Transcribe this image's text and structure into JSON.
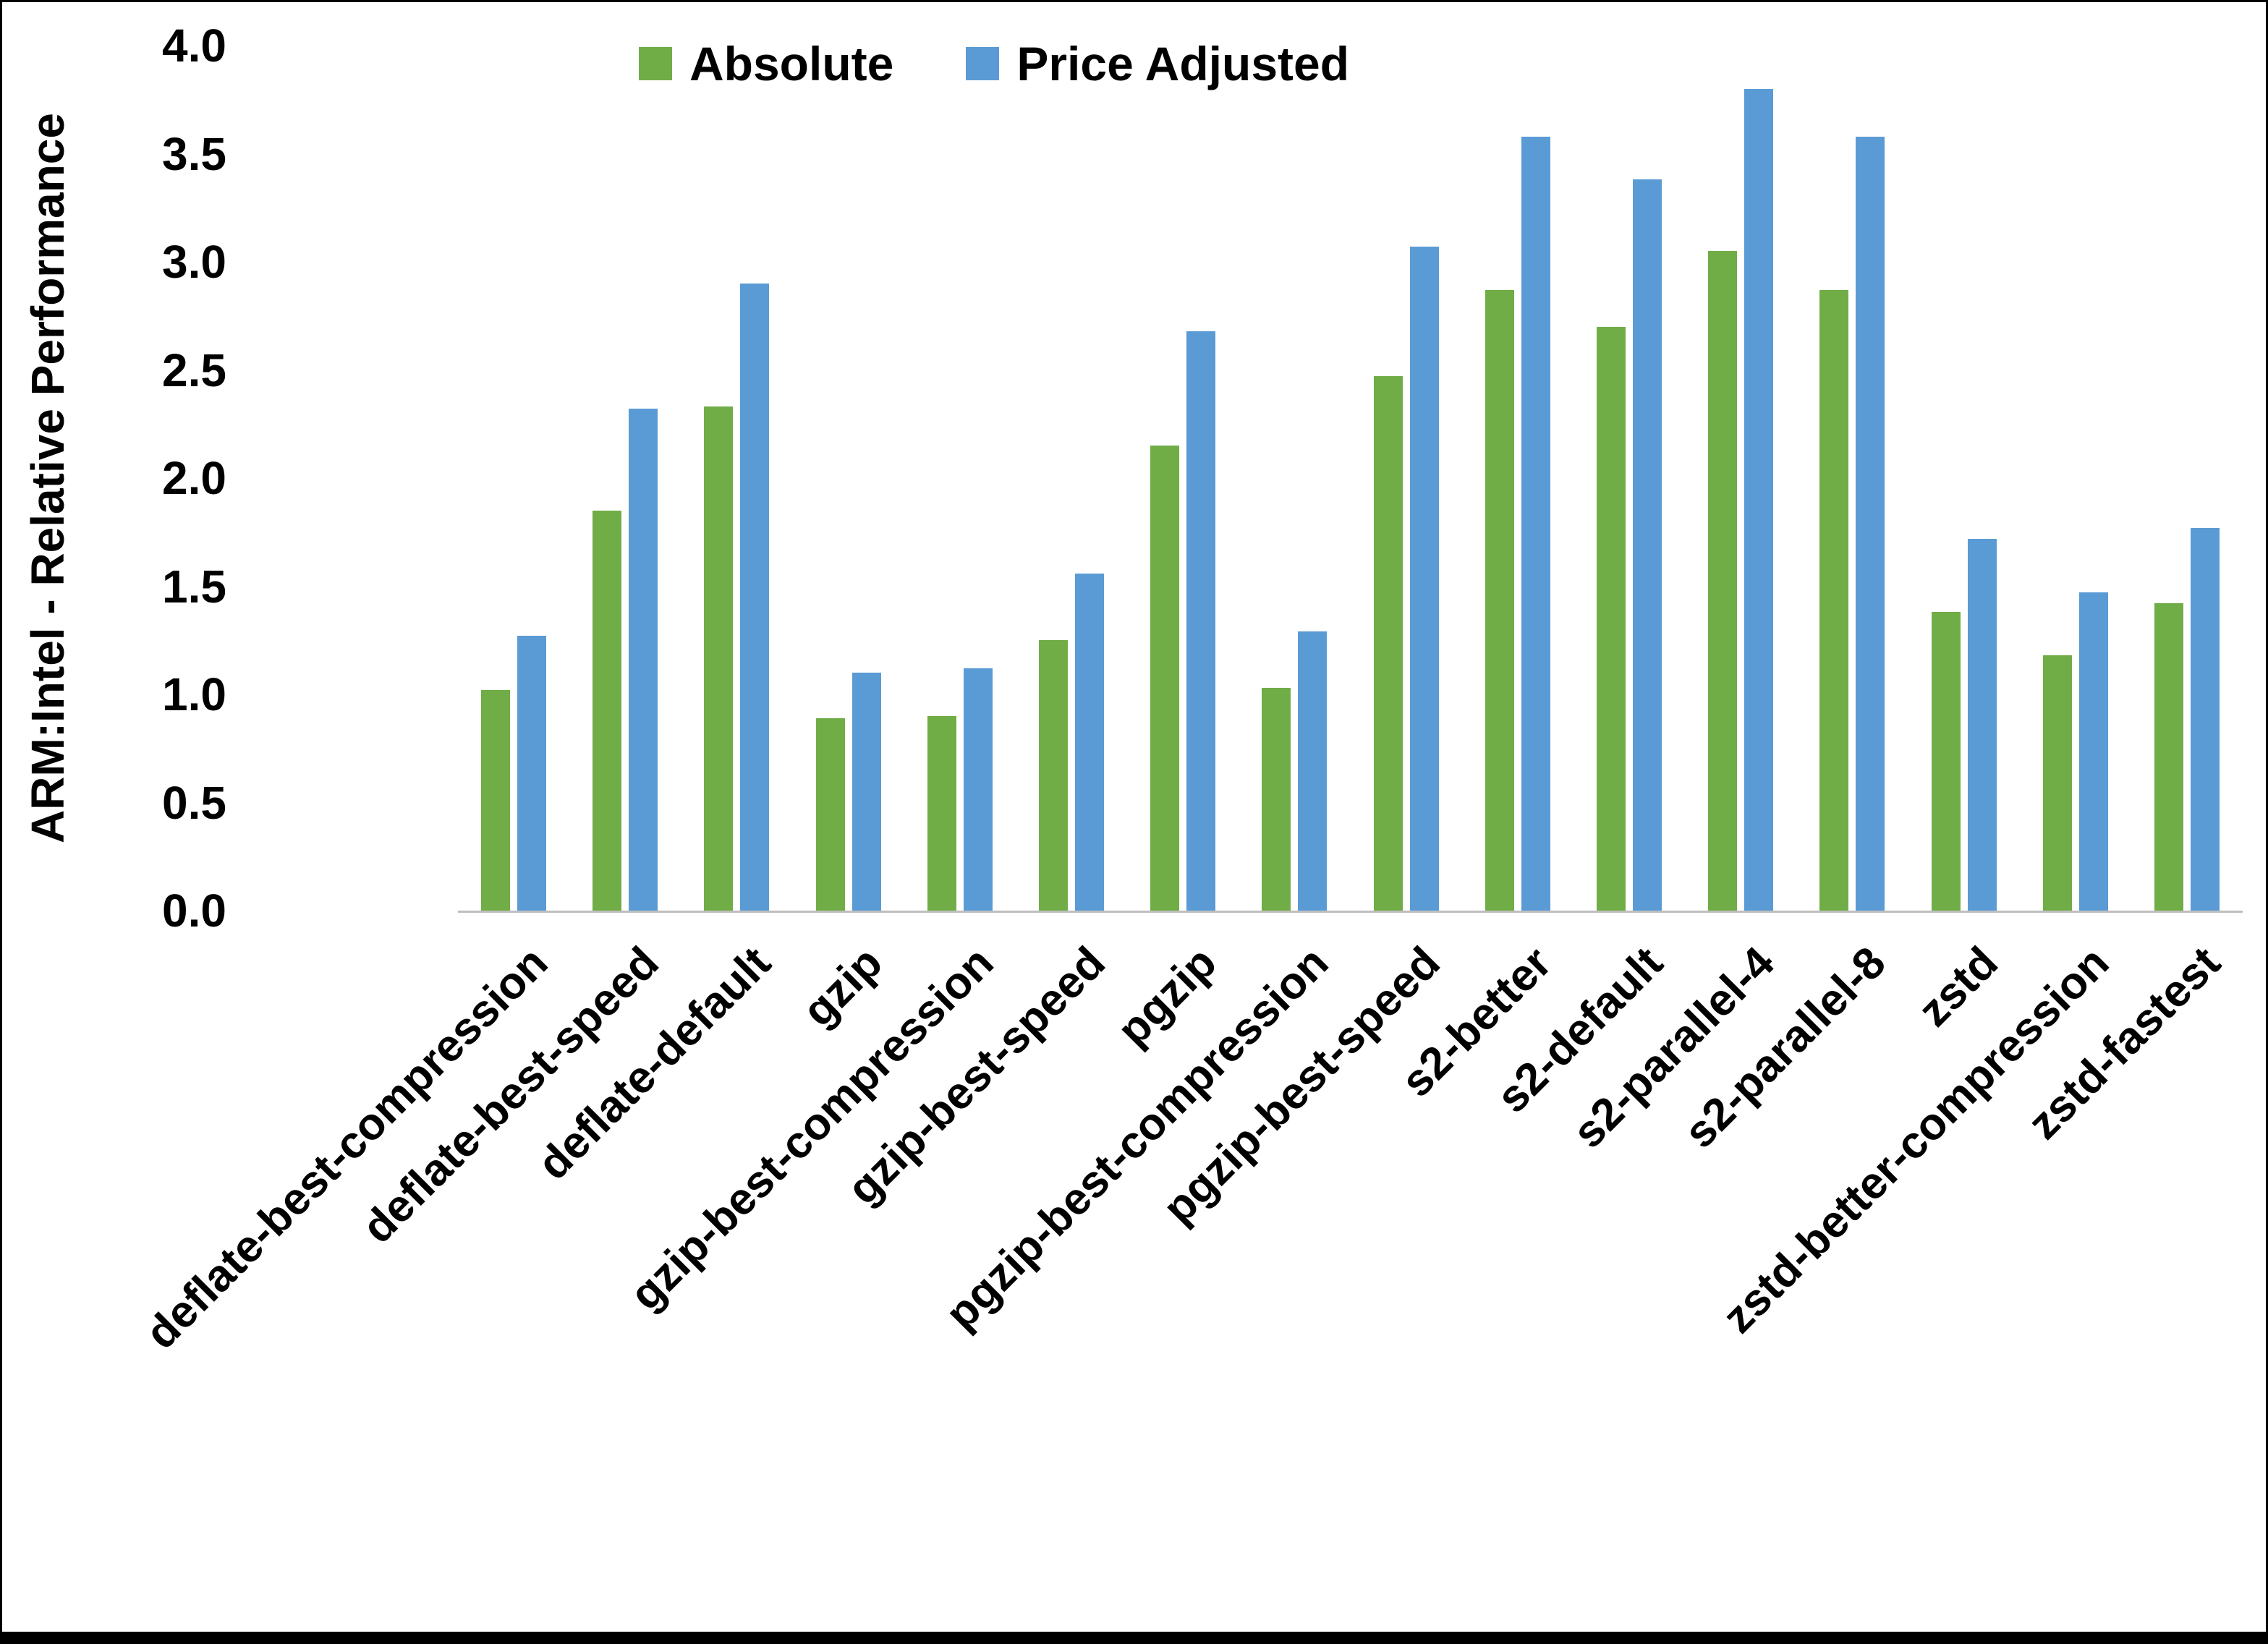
{
  "chart_data": {
    "type": "bar",
    "title": "",
    "xlabel": "",
    "ylabel": "ARM:Intel - Relative Performance",
    "ylim": [
      0,
      4.0
    ],
    "ytick_step": 0.5,
    "grid": false,
    "legend_position": "top-center",
    "background": "#ffffff",
    "categories": [
      "deflate-best-compression",
      "deflate-best-speed",
      "deflate-default",
      "gzip",
      "gzip-best-compression",
      "gzip-best-speed",
      "pgzip",
      "pgzip-best-compression",
      "pgzip-best-speed",
      "s2-better",
      "s2-default",
      "s2-parallel-4",
      "s2-parallel-8",
      "zstd",
      "zstd-better-compression",
      "zstd-fastest"
    ],
    "series": [
      {
        "name": "Absolute",
        "color": "#70AD47",
        "values": [
          1.02,
          1.85,
          2.33,
          0.89,
          0.9,
          1.25,
          2.15,
          1.03,
          2.47,
          2.87,
          2.7,
          3.05,
          2.87,
          1.38,
          1.18,
          1.42
        ]
      },
      {
        "name": "Price Adjusted",
        "color": "#5B9BD5",
        "values": [
          1.27,
          2.32,
          2.9,
          1.1,
          1.12,
          1.56,
          2.68,
          1.29,
          3.07,
          3.58,
          3.38,
          3.8,
          3.58,
          1.72,
          1.47,
          1.77
        ]
      }
    ]
  }
}
